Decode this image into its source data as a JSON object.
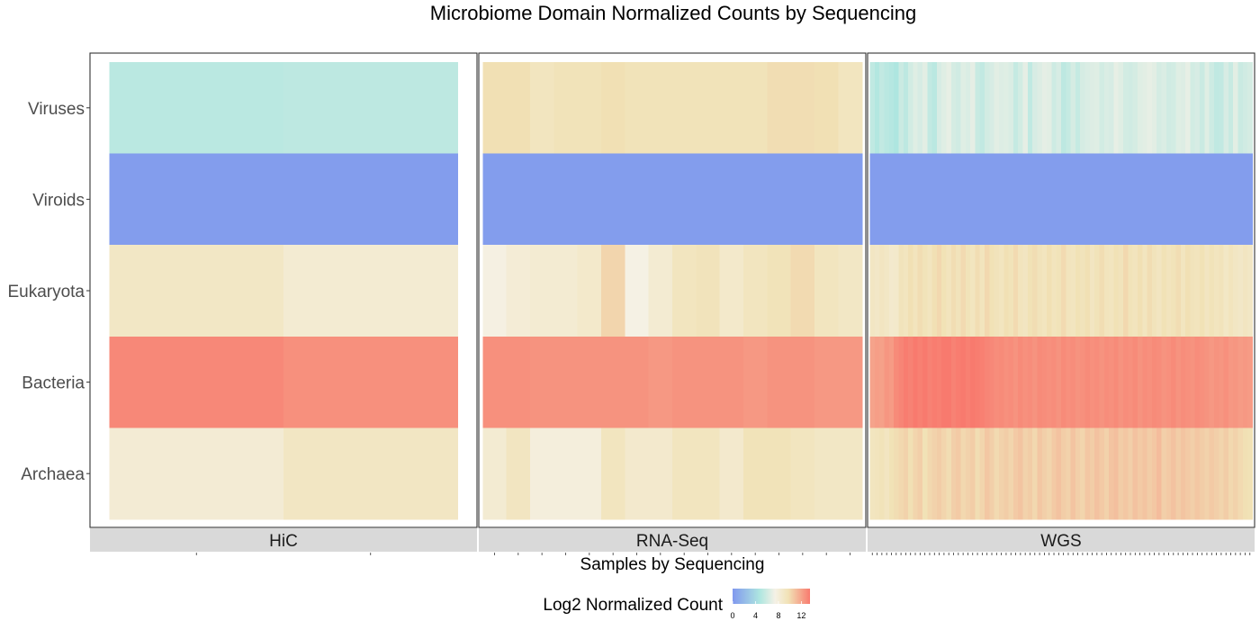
{
  "chart_data": {
    "type": "heatmap",
    "title": "Microbiome Domain Normalized Counts by Sequencing",
    "xlabel": "Samples by Sequencing",
    "rows": [
      "Viruses",
      "Viroids",
      "Eukaryota",
      "Bacteria",
      "Archaea"
    ],
    "legend": {
      "title": "Log2 Normalized Count",
      "ticks": [
        0,
        4,
        8,
        12
      ],
      "range": [
        0,
        13.5
      ],
      "colors": [
        "#8098ee",
        "#aee6e0",
        "#f5f1e6",
        "#f1e2b6",
        "#f87a6e"
      ]
    },
    "facets": [
      {
        "name": "HiC",
        "columns": 2,
        "values": {
          "Viruses": [
            5.2,
            5.3
          ],
          "Viroids": [
            0.3,
            0.3
          ],
          "Eukaryota": [
            9.0,
            8.4
          ],
          "Bacteria": [
            13.0,
            12.7
          ],
          "Archaea": [
            8.3,
            9.1
          ]
        }
      },
      {
        "name": "RNA-Seq",
        "columns": 16,
        "values": {
          "Viruses": [
            9.8,
            9.8,
            9.3,
            9.6,
            9.6,
            9.8,
            9.6,
            9.6,
            9.6,
            9.6,
            9.6,
            9.6,
            9.9,
            9.9,
            9.8,
            9.3
          ],
          "Viroids": [
            0.3,
            0.3,
            0.3,
            0.3,
            0.3,
            0.3,
            0.3,
            0.3,
            0.3,
            0.3,
            0.3,
            0.3,
            0.3,
            0.3,
            0.3,
            0.3
          ],
          "Eukaryota": [
            7.6,
            8.2,
            8.4,
            8.4,
            8.7,
            10.2,
            7.5,
            8.4,
            9.3,
            9.5,
            8.7,
            9.3,
            9.6,
            10.0,
            9.3,
            9.0
          ],
          "Bacteria": [
            12.7,
            12.7,
            12.6,
            12.6,
            12.6,
            12.6,
            12.6,
            12.4,
            12.6,
            12.6,
            12.6,
            12.4,
            12.6,
            12.6,
            12.4,
            12.4
          ],
          "Archaea": [
            8.4,
            9.2,
            7.9,
            7.9,
            7.9,
            9.3,
            8.6,
            8.6,
            9.3,
            9.3,
            8.6,
            9.6,
            9.6,
            9.3,
            9.0,
            9.0
          ]
        }
      },
      {
        "name": "WGS",
        "columns": 80,
        "values": {
          "Viruses": [
            5.4,
            4.9,
            5.5,
            5.2,
            5.0,
            4.7,
            5.8,
            5.3,
            6.1,
            6.6,
            6.3,
            6.7,
            5.5,
            5.2,
            6.3,
            6.6,
            6.9,
            6.2,
            6.0,
            6.6,
            6.4,
            6.8,
            5.7,
            5.5,
            6.1,
            6.3,
            6.7,
            6.5,
            6.6,
            6.4,
            5.6,
            6.1,
            6.8,
            5.4,
            6.3,
            6.5,
            6.8,
            6.7,
            5.9,
            6.3,
            5.3,
            5.6,
            6.2,
            5.6,
            6.2,
            6.4,
            6.5,
            6.6,
            6.1,
            6.4,
            6.3,
            6.9,
            6.6,
            6.1,
            6.0,
            6.2,
            6.6,
            6.7,
            6.9,
            6.7,
            6.2,
            6.4,
            6.0,
            6.1,
            6.6,
            6.5,
            6.9,
            6.1,
            6.3,
            5.8,
            6.6,
            5.9,
            5.4,
            5.5,
            6.3,
            5.7,
            6.7,
            5.8,
            6.0,
            6.2
          ],
          "Viroids": [
            0.3,
            0.3,
            0.3,
            0.3,
            0.3,
            0.3,
            0.3,
            0.3,
            0.3,
            0.3,
            0.3,
            0.3,
            0.3,
            0.3,
            0.3,
            0.3,
            0.3,
            0.3,
            0.3,
            0.3,
            0.3,
            0.3,
            0.3,
            0.3,
            0.3,
            0.3,
            0.3,
            0.3,
            0.3,
            0.3,
            0.3,
            0.3,
            0.3,
            0.3,
            0.3,
            0.3,
            0.3,
            0.3,
            0.3,
            0.3,
            0.3,
            0.3,
            0.3,
            0.3,
            0.3,
            0.3,
            0.3,
            0.3,
            0.3,
            0.3,
            0.3,
            0.3,
            0.3,
            0.3,
            0.3,
            0.3,
            0.3,
            0.3,
            0.3,
            0.3,
            0.3,
            0.3,
            0.3,
            0.3,
            0.3,
            0.3,
            0.3,
            0.3,
            0.3,
            0.3,
            0.3,
            0.3,
            0.3,
            0.3,
            0.3,
            0.3,
            0.3,
            0.3,
            0.3,
            0.3
          ],
          "Eukaryota": [
            9.1,
            8.9,
            9.2,
            9.0,
            8.6,
            8.7,
            9.5,
            9.3,
            9.8,
            9.4,
            9.9,
            9.6,
            9.3,
            9.8,
            10.1,
            9.7,
            9.4,
            9.9,
            9.5,
            10.0,
            9.6,
            9.3,
            9.9,
            9.4,
            10.1,
            9.7,
            9.5,
            9.3,
            9.8,
            9.6,
            10.0,
            9.4,
            9.2,
            9.7,
            9.9,
            9.5,
            9.3,
            9.8,
            9.4,
            9.6,
            10.0,
            9.4,
            9.3,
            9.7,
            9.5,
            9.8,
            9.2,
            9.6,
            9.9,
            9.4,
            9.3,
            9.7,
            9.5,
            10.1,
            9.6,
            9.4,
            9.8,
            9.3,
            9.9,
            9.5,
            9.2,
            9.7,
            9.4,
            9.6,
            9.9,
            9.3,
            9.8,
            9.5,
            9.4,
            9.7,
            9.2,
            9.6,
            9.3,
            9.5,
            9.0,
            9.4,
            9.1,
            8.9,
            9.2,
            9.0
          ],
          "Bacteria": [
            12.0,
            12.2,
            12.1,
            12.5,
            12.3,
            12.9,
            13.1,
            13.4,
            13.2,
            13.5,
            13.3,
            13.6,
            13.2,
            13.4,
            13.3,
            13.6,
            13.5,
            13.2,
            13.4,
            13.6,
            13.3,
            13.5,
            13.4,
            13.3,
            13.1,
            13.0,
            12.8,
            12.9,
            12.7,
            12.8,
            12.6,
            12.9,
            12.7,
            12.8,
            12.6,
            12.9,
            12.8,
            12.7,
            12.8,
            12.6,
            12.9,
            12.7,
            12.8,
            12.6,
            12.7,
            12.9,
            12.7,
            12.8,
            12.6,
            12.8,
            12.7,
            12.9,
            12.6,
            12.8,
            12.7,
            12.9,
            12.6,
            12.8,
            12.7,
            12.9,
            12.8,
            12.6,
            12.7,
            12.9,
            12.6,
            12.8,
            12.7,
            12.6,
            12.8,
            12.7,
            12.6,
            12.4,
            12.6,
            12.5,
            12.7,
            12.4,
            12.5,
            12.3,
            12.4,
            12.3
          ],
          "Archaea": [
            9.3,
            9.4,
            9.6,
            9.2,
            9.7,
            9.9,
            10.1,
            10.3,
            9.8,
            10.2,
            10.4,
            9.7,
            10.1,
            10.3,
            10.5,
            10.2,
            9.9,
            10.4,
            10.6,
            10.1,
            10.3,
            10.5,
            9.9,
            10.2,
            10.7,
            10.4,
            10.0,
            10.3,
            10.5,
            10.2,
            10.6,
            10.8,
            10.3,
            10.5,
            10.1,
            10.7,
            10.4,
            10.2,
            10.6,
            10.9,
            10.5,
            10.3,
            10.8,
            10.4,
            10.2,
            10.7,
            10.5,
            10.9,
            10.6,
            10.3,
            10.8,
            11.0,
            10.5,
            10.7,
            10.4,
            10.9,
            10.6,
            10.8,
            10.5,
            10.7,
            11.1,
            10.4,
            10.6,
            10.9,
            10.5,
            10.8,
            10.6,
            10.4,
            10.7,
            10.5,
            10.3,
            10.6,
            10.4,
            10.2,
            10.5,
            10.1,
            10.3,
            10.0,
            9.8,
            9.7
          ]
        }
      }
    ]
  }
}
